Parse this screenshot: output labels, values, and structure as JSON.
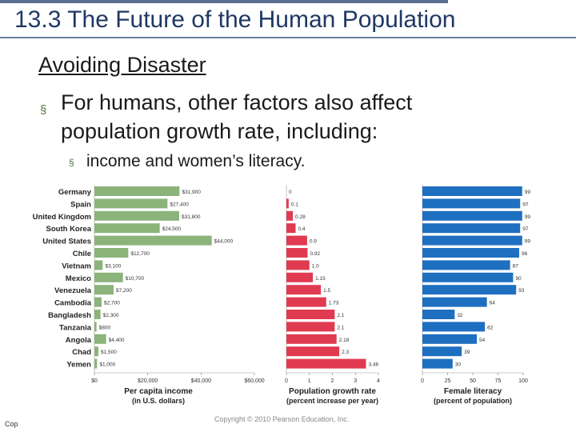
{
  "slide": {
    "title": "13.3 The Future of the Human Population",
    "subtitle": "Avoiding Disaster",
    "bullet1": "For humans, other factors also affect population growth rate, including:",
    "bullet2": "income and women’s literacy.",
    "bullet_glyph": "§",
    "copyright": "Copyright © 2010 Pearson Education, Inc.",
    "footer_fragment": "Cop"
  },
  "colors": {
    "title": "#1f3864",
    "income_bar": "#8cb37a",
    "growth_bar": "#e03a50",
    "literacy_bar": "#1e6fc0"
  },
  "chart_data": {
    "type": "bar",
    "orientation": "horizontal",
    "categories": [
      "Germany",
      "Spain",
      "United Kingdom",
      "South Korea",
      "United States",
      "Chile",
      "Vietnam",
      "Mexico",
      "Venezuela",
      "Cambodia",
      "Bangladesh",
      "Tanzania",
      "Angola",
      "Chad",
      "Yemen"
    ],
    "series": [
      {
        "name": "Per capita income",
        "xlabel": "Per capita income",
        "xlabel_sub": "(in U.S. dollars)",
        "values": [
          31900,
          27400,
          31800,
          24500,
          44000,
          12700,
          3100,
          10700,
          7200,
          2700,
          2300,
          800,
          4400,
          1500,
          1000
        ],
        "value_labels": [
          "$31,900",
          "$27,400",
          "$31,800",
          "$24,500",
          "$44,000",
          "$12,700",
          "$3,100",
          "$10,700",
          "$7,200",
          "$2,700",
          "$2,300",
          "$800",
          "$4,400",
          "$1,500",
          "$1,000"
        ],
        "xlim": [
          0,
          60000
        ],
        "ticks": [
          0,
          20000,
          40000,
          60000
        ],
        "tick_labels": [
          "$0",
          "$20,000",
          "$40,000",
          "$60,000"
        ]
      },
      {
        "name": "Population growth rate",
        "xlabel": "Population growth rate",
        "xlabel_sub": "(percent increase per year)",
        "values": [
          0,
          0.1,
          0.28,
          0.4,
          0.9,
          0.92,
          1.0,
          1.15,
          1.5,
          1.73,
          2.1,
          2.1,
          2.18,
          2.3,
          3.46
        ],
        "value_labels": [
          "0",
          "0.1",
          "0.28",
          "0.4",
          "0.9",
          "0.92",
          "1.0",
          "1.15",
          "1.5",
          "1.73",
          "2.1",
          "2.1",
          "2.18",
          "2.3",
          "3.46"
        ],
        "xlim": [
          0,
          4
        ],
        "ticks": [
          0,
          1,
          2,
          3,
          4
        ],
        "tick_labels": [
          "0",
          "1",
          "2",
          "3",
          "4"
        ]
      },
      {
        "name": "Female literacy",
        "xlabel": "Female literacy",
        "xlabel_sub": "(percent of population)",
        "values": [
          99,
          97,
          99,
          97,
          99,
          96,
          87,
          90,
          93,
          64,
          32,
          62,
          54,
          39,
          30
        ],
        "value_labels": [
          "99",
          "97",
          "99",
          "97",
          "99",
          "96",
          "87",
          "90",
          "93",
          "64",
          "32",
          "62",
          "54",
          "39",
          "30"
        ],
        "xlim": [
          0,
          100
        ],
        "ticks": [
          0,
          25,
          50,
          75,
          100
        ],
        "tick_labels": [
          "0",
          "25",
          "50",
          "75",
          "100"
        ]
      }
    ]
  }
}
